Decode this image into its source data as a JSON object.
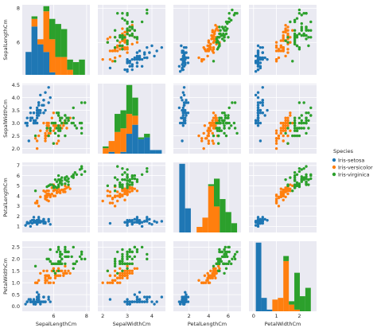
{
  "chart_data": {
    "type": "scatter-matrix",
    "variables": [
      "SepalLengthCm",
      "SepalWidthCm",
      "PetalLengthCm",
      "PetalWidthCm"
    ],
    "diagonal_type": "stacked-histogram",
    "offdiagonal_type": "scatter",
    "background": "#eaeaf2",
    "grid": true,
    "legend": {
      "title": "Species",
      "placement": "right",
      "entries": [
        "Iris-setosa",
        "Iris-versicolor",
        "Iris-virginica"
      ]
    },
    "series_colors": [
      "#1f77b4",
      "#ff7f0e",
      "#2ca02c"
    ],
    "axes": [
      {
        "name": "SepalLengthCm",
        "lim": [
          4.1,
          8.2
        ],
        "ticks": [
          6,
          8
        ],
        "tick_labels": [
          "6",
          "8"
        ]
      },
      {
        "name": "SepalWidthCm",
        "lim": [
          1.8,
          4.55
        ],
        "ticks": [
          2.0,
          2.5,
          3.0,
          3.5,
          4.0,
          4.5
        ],
        "tick_labels": [
          "2.0",
          "2.5",
          "3.0",
          "3.5",
          "4.0",
          "4.5"
        ],
        "x_ticks": [
          2,
          3,
          4
        ],
        "x_tick_labels": [
          "2",
          "3",
          "4"
        ]
      },
      {
        "name": "PetalLengthCm",
        "lim": [
          0.4,
          7.3
        ],
        "ticks": [
          1,
          2,
          3,
          4,
          5,
          6,
          7
        ],
        "tick_labels": [
          "1",
          "2",
          "3",
          "4",
          "5",
          "6",
          "7"
        ],
        "x_ticks": [
          2,
          4,
          6
        ],
        "x_tick_labels": [
          "2",
          "4",
          "6"
        ]
      },
      {
        "name": "PetalWidthCm",
        "lim": [
          -0.2,
          2.75
        ],
        "ticks": [
          0.0,
          0.5,
          1.0,
          1.5,
          2.0,
          2.5
        ],
        "tick_labels": [
          "0.0",
          "0.5",
          "1.0",
          "1.5",
          "2.0",
          "2.5"
        ],
        "x_ticks": [
          0,
          1,
          2
        ],
        "x_tick_labels": [
          "0",
          "1",
          "2"
        ]
      }
    ],
    "series": [
      {
        "name": "Iris-setosa",
        "points": [
          [
            5.1,
            3.5,
            1.4,
            0.2
          ],
          [
            4.9,
            3.0,
            1.4,
            0.2
          ],
          [
            4.7,
            3.2,
            1.3,
            0.2
          ],
          [
            4.6,
            3.1,
            1.5,
            0.2
          ],
          [
            5.0,
            3.6,
            1.4,
            0.2
          ],
          [
            5.4,
            3.9,
            1.7,
            0.4
          ],
          [
            4.6,
            3.4,
            1.4,
            0.3
          ],
          [
            5.0,
            3.4,
            1.5,
            0.2
          ],
          [
            4.4,
            2.9,
            1.4,
            0.2
          ],
          [
            4.9,
            3.1,
            1.5,
            0.1
          ],
          [
            5.4,
            3.7,
            1.5,
            0.2
          ],
          [
            4.8,
            3.4,
            1.6,
            0.2
          ],
          [
            4.8,
            3.0,
            1.4,
            0.1
          ],
          [
            4.3,
            3.0,
            1.1,
            0.1
          ],
          [
            5.8,
            4.0,
            1.2,
            0.2
          ],
          [
            5.7,
            4.4,
            1.5,
            0.4
          ],
          [
            5.4,
            3.9,
            1.3,
            0.4
          ],
          [
            5.1,
            3.5,
            1.4,
            0.3
          ],
          [
            5.7,
            3.8,
            1.7,
            0.3
          ],
          [
            5.1,
            3.8,
            1.5,
            0.3
          ],
          [
            5.4,
            3.4,
            1.7,
            0.2
          ],
          [
            5.1,
            3.7,
            1.5,
            0.4
          ],
          [
            4.6,
            3.6,
            1.0,
            0.2
          ],
          [
            5.1,
            3.3,
            1.7,
            0.5
          ],
          [
            4.8,
            3.4,
            1.9,
            0.2
          ],
          [
            5.0,
            3.0,
            1.6,
            0.2
          ],
          [
            5.0,
            3.4,
            1.6,
            0.4
          ],
          [
            5.2,
            3.5,
            1.5,
            0.2
          ],
          [
            5.2,
            3.4,
            1.4,
            0.2
          ],
          [
            4.7,
            3.2,
            1.6,
            0.2
          ],
          [
            4.8,
            3.1,
            1.6,
            0.2
          ],
          [
            5.4,
            3.4,
            1.5,
            0.4
          ],
          [
            5.2,
            4.1,
            1.5,
            0.1
          ],
          [
            5.5,
            4.2,
            1.4,
            0.2
          ],
          [
            4.9,
            3.1,
            1.5,
            0.1
          ],
          [
            5.0,
            3.2,
            1.2,
            0.2
          ],
          [
            5.5,
            3.5,
            1.3,
            0.2
          ],
          [
            4.9,
            3.1,
            1.5,
            0.1
          ],
          [
            4.4,
            3.0,
            1.3,
            0.2
          ],
          [
            5.1,
            3.4,
            1.5,
            0.2
          ],
          [
            5.0,
            3.5,
            1.3,
            0.3
          ],
          [
            4.5,
            2.3,
            1.3,
            0.3
          ],
          [
            4.4,
            3.2,
            1.3,
            0.2
          ],
          [
            5.0,
            3.5,
            1.6,
            0.6
          ],
          [
            5.1,
            3.8,
            1.9,
            0.4
          ],
          [
            4.8,
            3.0,
            1.4,
            0.3
          ],
          [
            5.1,
            3.8,
            1.6,
            0.2
          ],
          [
            4.6,
            3.2,
            1.4,
            0.2
          ],
          [
            5.3,
            3.7,
            1.5,
            0.2
          ],
          [
            5.0,
            3.3,
            1.4,
            0.2
          ]
        ]
      },
      {
        "name": "Iris-versicolor",
        "points": [
          [
            7.0,
            3.2,
            4.7,
            1.4
          ],
          [
            6.4,
            3.2,
            4.5,
            1.5
          ],
          [
            6.9,
            3.1,
            4.9,
            1.5
          ],
          [
            5.5,
            2.3,
            4.0,
            1.3
          ],
          [
            6.5,
            2.8,
            4.6,
            1.5
          ],
          [
            5.7,
            2.8,
            4.5,
            1.3
          ],
          [
            6.3,
            3.3,
            4.7,
            1.6
          ],
          [
            4.9,
            2.4,
            3.3,
            1.0
          ],
          [
            6.6,
            2.9,
            4.6,
            1.3
          ],
          [
            5.2,
            2.7,
            3.9,
            1.4
          ],
          [
            5.0,
            2.0,
            3.5,
            1.0
          ],
          [
            5.9,
            3.0,
            4.2,
            1.5
          ],
          [
            6.0,
            2.2,
            4.0,
            1.0
          ],
          [
            6.1,
            2.9,
            4.7,
            1.4
          ],
          [
            5.6,
            2.9,
            3.6,
            1.3
          ],
          [
            6.7,
            3.1,
            4.4,
            1.4
          ],
          [
            5.6,
            3.0,
            4.5,
            1.5
          ],
          [
            5.8,
            2.7,
            4.1,
            1.0
          ],
          [
            6.2,
            2.2,
            4.5,
            1.5
          ],
          [
            5.6,
            2.5,
            3.9,
            1.1
          ],
          [
            5.9,
            3.2,
            4.8,
            1.8
          ],
          [
            6.1,
            2.8,
            4.0,
            1.3
          ],
          [
            6.3,
            2.5,
            4.9,
            1.5
          ],
          [
            6.1,
            2.8,
            4.7,
            1.2
          ],
          [
            6.4,
            2.9,
            4.3,
            1.3
          ],
          [
            6.6,
            3.0,
            4.4,
            1.4
          ],
          [
            6.8,
            2.8,
            4.8,
            1.4
          ],
          [
            6.7,
            3.0,
            5.0,
            1.7
          ],
          [
            6.0,
            2.9,
            4.5,
            1.5
          ],
          [
            5.7,
            2.6,
            3.5,
            1.0
          ],
          [
            5.5,
            2.4,
            3.8,
            1.1
          ],
          [
            5.5,
            2.4,
            3.7,
            1.0
          ],
          [
            5.8,
            2.7,
            3.9,
            1.2
          ],
          [
            6.0,
            2.7,
            5.1,
            1.6
          ],
          [
            5.4,
            3.0,
            4.5,
            1.5
          ],
          [
            6.0,
            3.4,
            4.5,
            1.6
          ],
          [
            6.7,
            3.1,
            4.7,
            1.5
          ],
          [
            6.3,
            2.3,
            4.4,
            1.3
          ],
          [
            5.6,
            3.0,
            4.1,
            1.3
          ],
          [
            5.5,
            2.5,
            4.0,
            1.3
          ],
          [
            5.5,
            2.6,
            4.4,
            1.2
          ],
          [
            6.1,
            3.0,
            4.6,
            1.4
          ],
          [
            5.8,
            2.6,
            4.0,
            1.2
          ],
          [
            5.0,
            2.3,
            3.3,
            1.0
          ],
          [
            5.6,
            2.7,
            4.2,
            1.3
          ],
          [
            5.7,
            3.0,
            4.2,
            1.2
          ],
          [
            5.7,
            2.9,
            4.2,
            1.3
          ],
          [
            6.2,
            2.9,
            4.3,
            1.3
          ],
          [
            5.1,
            2.5,
            3.0,
            1.1
          ],
          [
            5.7,
            2.8,
            4.1,
            1.3
          ]
        ]
      },
      {
        "name": "Iris-virginica",
        "points": [
          [
            6.3,
            3.3,
            6.0,
            2.5
          ],
          [
            5.8,
            2.7,
            5.1,
            1.9
          ],
          [
            7.1,
            3.0,
            5.9,
            2.1
          ],
          [
            6.3,
            2.9,
            5.6,
            1.8
          ],
          [
            6.5,
            3.0,
            5.8,
            2.2
          ],
          [
            7.6,
            3.0,
            6.6,
            2.1
          ],
          [
            4.9,
            2.5,
            4.5,
            1.7
          ],
          [
            7.3,
            2.9,
            6.3,
            1.8
          ],
          [
            6.7,
            2.5,
            5.8,
            1.8
          ],
          [
            7.2,
            3.6,
            6.1,
            2.5
          ],
          [
            6.5,
            3.2,
            5.1,
            2.0
          ],
          [
            6.4,
            2.7,
            5.3,
            1.9
          ],
          [
            6.8,
            3.0,
            5.5,
            2.1
          ],
          [
            5.7,
            2.5,
            5.0,
            2.0
          ],
          [
            5.8,
            2.8,
            5.1,
            2.4
          ],
          [
            6.4,
            3.2,
            5.3,
            2.3
          ],
          [
            6.5,
            3.0,
            5.5,
            1.8
          ],
          [
            7.7,
            3.8,
            6.7,
            2.2
          ],
          [
            7.7,
            2.6,
            6.9,
            2.3
          ],
          [
            6.0,
            2.2,
            5.0,
            1.5
          ],
          [
            6.9,
            3.2,
            5.7,
            2.3
          ],
          [
            5.6,
            2.8,
            4.9,
            2.0
          ],
          [
            7.7,
            2.8,
            6.7,
            2.0
          ],
          [
            6.3,
            2.7,
            4.9,
            1.8
          ],
          [
            6.7,
            3.3,
            5.7,
            2.1
          ],
          [
            7.2,
            3.2,
            6.0,
            1.8
          ],
          [
            6.2,
            2.8,
            4.8,
            1.8
          ],
          [
            6.1,
            3.0,
            4.9,
            1.8
          ],
          [
            6.4,
            2.8,
            5.6,
            2.1
          ],
          [
            7.2,
            3.0,
            5.8,
            1.6
          ],
          [
            7.4,
            2.8,
            6.1,
            1.9
          ],
          [
            7.9,
            3.8,
            6.4,
            2.0
          ],
          [
            6.4,
            2.8,
            5.6,
            2.2
          ],
          [
            6.3,
            2.8,
            5.1,
            1.5
          ],
          [
            6.1,
            2.6,
            5.6,
            1.4
          ],
          [
            7.7,
            3.0,
            6.1,
            2.3
          ],
          [
            6.3,
            3.4,
            5.6,
            2.4
          ],
          [
            6.4,
            3.1,
            5.5,
            1.8
          ],
          [
            6.0,
            3.0,
            4.8,
            1.8
          ],
          [
            6.9,
            3.1,
            5.4,
            2.1
          ],
          [
            6.7,
            3.1,
            5.6,
            2.4
          ],
          [
            6.9,
            3.1,
            5.1,
            2.3
          ],
          [
            5.8,
            2.7,
            5.1,
            1.9
          ],
          [
            6.8,
            3.2,
            5.9,
            2.3
          ],
          [
            6.7,
            3.3,
            5.7,
            2.5
          ],
          [
            6.7,
            3.0,
            5.2,
            2.3
          ],
          [
            6.3,
            2.5,
            5.0,
            1.9
          ],
          [
            6.5,
            3.0,
            5.2,
            2.0
          ],
          [
            6.2,
            3.4,
            5.4,
            2.3
          ],
          [
            5.9,
            3.0,
            5.1,
            1.8
          ]
        ]
      }
    ]
  }
}
